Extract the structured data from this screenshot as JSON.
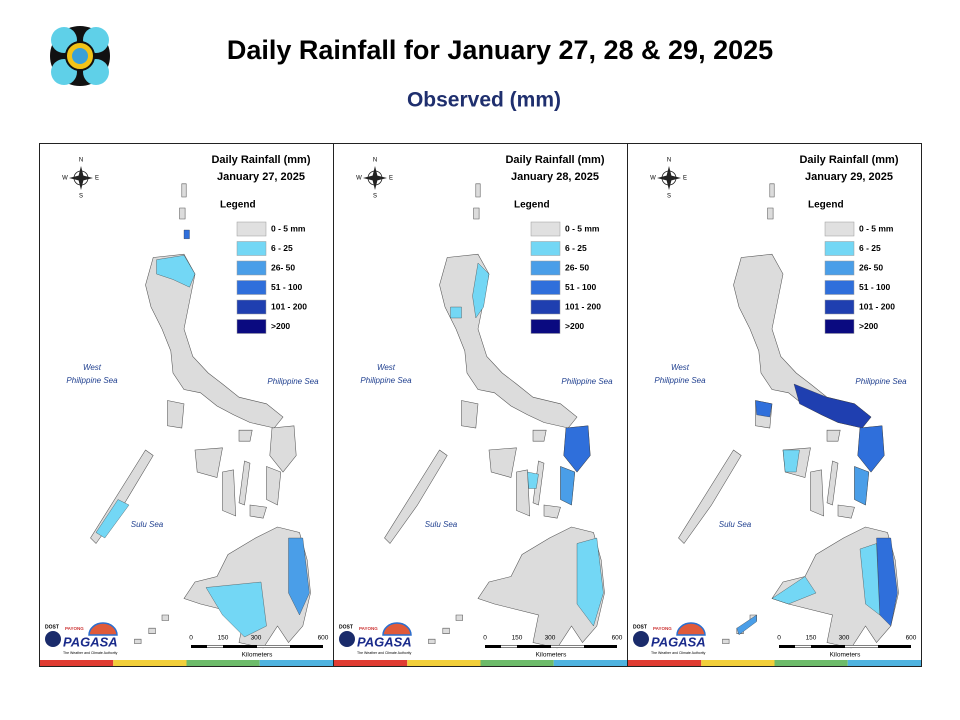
{
  "header": {
    "title": "Daily Rainfall for January 27, 28 & 29, 2025",
    "subtitle": "Observed (mm)"
  },
  "map_heading": "Daily Rainfall (mm)",
  "legend_title": "Legend",
  "legend": [
    {
      "label": "0 - 5 mm",
      "color": "#e0e0e0"
    },
    {
      "label": "6 - 25",
      "color": "#73d7f5"
    },
    {
      "label": "26- 50",
      "color": "#4a9ee8"
    },
    {
      "label": "51 - 100",
      "color": "#2f6fdb"
    },
    {
      "label": "101 - 200",
      "color": "#1f3fb0"
    },
    {
      "label": ">200",
      "color": "#0a0a80"
    }
  ],
  "sea_labels": {
    "west_1": "West",
    "west_2": "Philippine Sea",
    "east": "Philippine Sea",
    "sulu": "Sulu Sea"
  },
  "compass": {
    "n": "N",
    "w": "W",
    "e": "E",
    "s": "S"
  },
  "scale": {
    "ticks": [
      "0",
      "150",
      "300",
      "600"
    ],
    "unit": "Kilometers"
  },
  "logo": {
    "dost": "DOST",
    "payong": "PAYONG",
    "name": "PAGASA",
    "tagline": "The Weather and Climate Authority"
  },
  "panels": [
    {
      "date": "January 27, 2025"
    },
    {
      "date": "January 28, 2025"
    },
    {
      "date": "January 29, 2025"
    }
  ]
}
